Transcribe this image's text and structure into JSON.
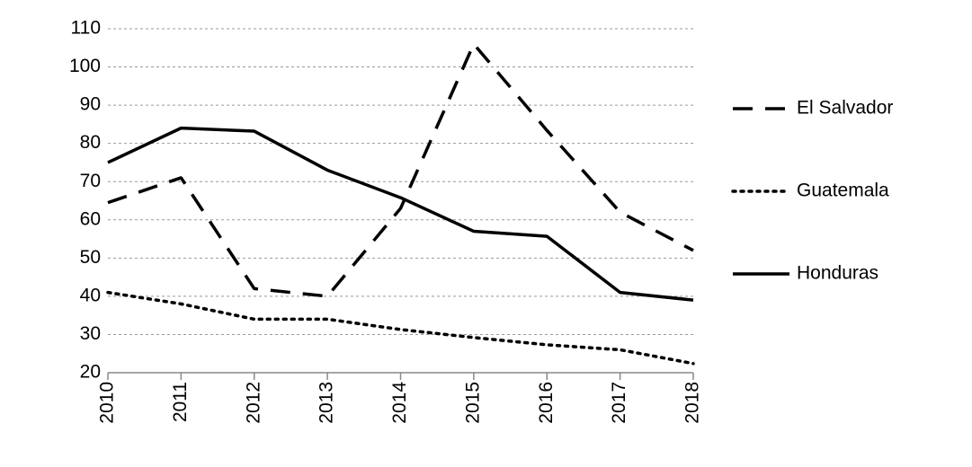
{
  "chart_data": {
    "type": "line",
    "x": [
      2010,
      2011,
      2012,
      2013,
      2014,
      2015,
      2016,
      2017,
      2018
    ],
    "xlim": [
      2010,
      2018
    ],
    "xticks": [
      2010,
      2011,
      2012,
      2013,
      2014,
      2015,
      2016,
      2017,
      2018
    ],
    "ylim": [
      20,
      110
    ],
    "yticks": [
      20,
      30,
      40,
      50,
      60,
      70,
      80,
      90,
      100,
      110
    ],
    "grid": true,
    "legend": "right",
    "series": [
      {
        "name": "El Salvador",
        "color": "#000000",
        "dash": "dashed",
        "values": [
          64.5,
          71,
          42,
          40,
          63,
          106,
          83.4,
          62,
          52
        ]
      },
      {
        "name": "Guatemala",
        "color": "#000000",
        "dash": "dotted",
        "values": [
          41,
          38,
          34,
          34,
          31.3,
          29.2,
          27.3,
          26,
          22.4
        ]
      },
      {
        "name": "Honduras",
        "color": "#000000",
        "dash": "solid",
        "values": [
          75,
          84,
          83.2,
          73,
          65.8,
          57,
          55.7,
          41,
          39
        ]
      }
    ]
  }
}
